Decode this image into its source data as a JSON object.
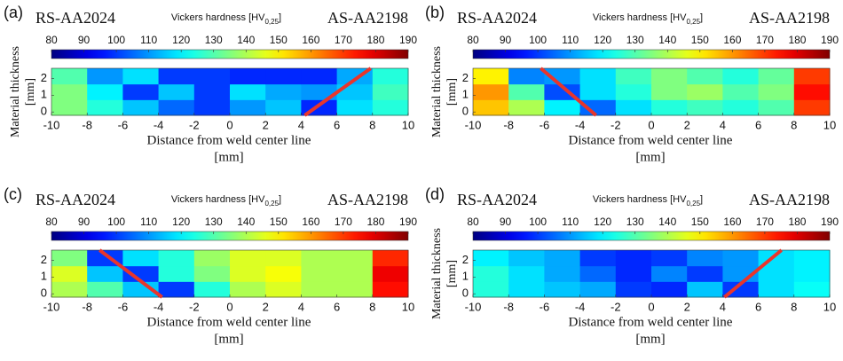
{
  "chart_data": [
    {
      "type": "heatmap",
      "panel_label": "(a)",
      "left_label": "RS-AA2024",
      "right_label": "AS-AA2198",
      "colorbar_label": [
        "Vickers hardness [HV",
        "0,25",
        "]"
      ],
      "colormap": "jet",
      "clim": [
        80,
        190
      ],
      "cticks": [
        80,
        90,
        100,
        110,
        120,
        130,
        140,
        150,
        160,
        170,
        180,
        190
      ],
      "xlim": [
        -10,
        10
      ],
      "xticks": [
        -10,
        -8,
        -6,
        -4,
        -2,
        0,
        2,
        4,
        6,
        8,
        10
      ],
      "ylim": [
        -0.2,
        2.6
      ],
      "yticks": [
        0,
        1,
        2
      ],
      "xlabel": [
        "Distance from weld center line",
        "[mm]"
      ],
      "ylabel": [
        "Material thickness",
        "[mm]"
      ],
      "z": [
        [
          135,
          125,
          115,
          105,
          100,
          110,
          115,
          98,
          118,
          125
        ],
        [
          135,
          120,
          100,
          115,
          100,
          118,
          112,
          110,
          115,
          128
        ],
        [
          130,
          110,
          118,
          100,
          100,
          98,
          98,
          98,
          112,
          125
        ]
      ],
      "lines": [
        {
          "color": "#e8352c",
          "x": [
            4.2,
            7.9
          ],
          "y": [
            -0.2,
            2.6
          ]
        }
      ]
    },
    {
      "type": "heatmap",
      "panel_label": "(b)",
      "left_label": "RS-AA2024",
      "right_label": "AS-AA2198",
      "colorbar_label": [
        "Vickers hardness [HV",
        "0,25",
        "]"
      ],
      "colormap": "jet",
      "clim": [
        80,
        190
      ],
      "cticks": [
        80,
        90,
        100,
        110,
        120,
        130,
        140,
        150,
        160,
        170,
        180,
        190
      ],
      "xlim": [
        -10,
        10
      ],
      "xticks": [
        -10,
        -8,
        -6,
        -4,
        -2,
        0,
        2,
        4,
        6,
        8,
        10
      ],
      "ylim": [
        -0.2,
        2.6
      ],
      "yticks": [
        0,
        1,
        2
      ],
      "xlabel": [
        "Distance from weld center line",
        "[mm]"
      ],
      "ylabel": [
        "Material thickness",
        "[mm]"
      ],
      "z": [
        [
          155,
          140,
          120,
          105,
          118,
          125,
          128,
          125,
          130,
          170
        ],
        [
          160,
          130,
          102,
          118,
          125,
          135,
          138,
          130,
          135,
          175
        ],
        [
          150,
          108,
          110,
          118,
          128,
          135,
          130,
          125,
          132,
          170
        ]
      ],
      "lines": [
        {
          "color": "#e8352c",
          "x": [
            -6.2,
            -3.1
          ],
          "y": [
            2.6,
            -0.2
          ]
        }
      ]
    },
    {
      "type": "heatmap",
      "panel_label": "(c)",
      "left_label": "RS-AA2024",
      "right_label": "AS-AA2198",
      "colorbar_label": [
        "Vickers hardness [HV",
        "0,25",
        "]"
      ],
      "colormap": "jet",
      "clim": [
        80,
        190
      ],
      "cticks": [
        80,
        90,
        100,
        110,
        120,
        130,
        140,
        150,
        160,
        170,
        180,
        190
      ],
      "xlim": [
        -10,
        10
      ],
      "xticks": [
        -10,
        -8,
        -6,
        -4,
        -2,
        0,
        2,
        4,
        6,
        8,
        10
      ],
      "ylim": [
        -0.2,
        2.6
      ],
      "yticks": [
        0,
        1,
        2
      ],
      "xlabel": [
        "Distance from weld center line",
        "[mm]"
      ],
      "z": [
        [
          140,
          130,
          115,
          100,
          125,
          140,
          145,
          140,
          140,
          175
        ],
        [
          145,
          115,
          100,
          125,
          135,
          145,
          148,
          140,
          140,
          178
        ],
        [
          135,
          100,
          118,
          125,
          138,
          145,
          145,
          140,
          140,
          172
        ]
      ],
      "lines": [
        {
          "color": "#e8352c",
          "x": [
            -7.3,
            -3.8
          ],
          "y": [
            2.6,
            -0.2
          ]
        }
      ]
    },
    {
      "type": "heatmap",
      "panel_label": "(d)",
      "left_label": "RS-AA2024",
      "right_label": "AS-AA2198",
      "colorbar_label": [
        "Vickers hardness [HV",
        "0,25",
        "]"
      ],
      "colormap": "jet",
      "clim": [
        80,
        190
      ],
      "cticks": [
        80,
        90,
        100,
        110,
        120,
        130,
        140,
        150,
        160,
        170,
        180,
        190
      ],
      "xlim": [
        -10,
        10
      ],
      "xticks": [
        -10,
        -8,
        -6,
        -4,
        -2,
        0,
        2,
        4,
        6,
        8,
        10
      ],
      "ylim": [
        -0.2,
        2.6
      ],
      "yticks": [
        0,
        1,
        2
      ],
      "xlabel": [
        "Distance from weld center line",
        "[mm]"
      ],
      "ylabel": [
        "Material thickness",
        "[mm]"
      ],
      "z": [
        [
          125,
          118,
          115,
          112,
          100,
          98,
          115,
          100,
          118,
          122
        ],
        [
          125,
          118,
          112,
          105,
          98,
          108,
          100,
          110,
          118,
          120
        ],
        [
          120,
          115,
          112,
          100,
          98,
          100,
          108,
          110,
          118,
          120
        ]
      ],
      "lines": [
        {
          "color": "#e8352c",
          "x": [
            4.1,
            7.3
          ],
          "y": [
            -0.2,
            2.6
          ]
        }
      ]
    }
  ]
}
